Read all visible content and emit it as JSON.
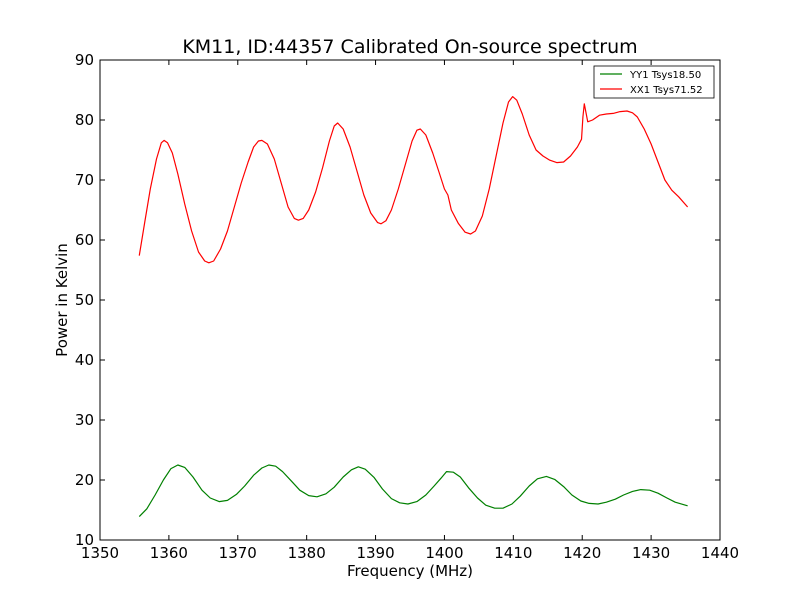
{
  "chart_data": {
    "type": "line",
    "title": "KM11, ID:44357 Calibrated On-source spectrum",
    "xlabel": "Frequency (MHz)",
    "ylabel": "Power in Kelvin",
    "xlim": [
      1350,
      1440
    ],
    "ylim": [
      10,
      90
    ],
    "xticks": [
      1350,
      1360,
      1370,
      1380,
      1390,
      1400,
      1410,
      1420,
      1430,
      1440
    ],
    "yticks": [
      10,
      20,
      30,
      40,
      50,
      60,
      70,
      80,
      90
    ],
    "grid": false,
    "legend_position": "top-right",
    "series": [
      {
        "name": "YY1 Tsys18.50",
        "color": "#008000",
        "points": [
          [
            1355.7,
            13.9
          ],
          [
            1356.8,
            15.2
          ],
          [
            1358.0,
            17.5
          ],
          [
            1359.2,
            20.0
          ],
          [
            1360.3,
            21.9
          ],
          [
            1361.3,
            22.5
          ],
          [
            1362.3,
            22.1
          ],
          [
            1363.5,
            20.5
          ],
          [
            1364.8,
            18.3
          ],
          [
            1366.0,
            17.0
          ],
          [
            1367.3,
            16.4
          ],
          [
            1368.5,
            16.6
          ],
          [
            1369.8,
            17.6
          ],
          [
            1371.0,
            19.0
          ],
          [
            1372.3,
            20.8
          ],
          [
            1373.5,
            22.0
          ],
          [
            1374.5,
            22.5
          ],
          [
            1375.5,
            22.3
          ],
          [
            1376.5,
            21.4
          ],
          [
            1377.8,
            19.8
          ],
          [
            1379.0,
            18.3
          ],
          [
            1380.3,
            17.4
          ],
          [
            1381.5,
            17.2
          ],
          [
            1382.8,
            17.7
          ],
          [
            1384.0,
            18.8
          ],
          [
            1385.3,
            20.5
          ],
          [
            1386.5,
            21.7
          ],
          [
            1387.5,
            22.2
          ],
          [
            1388.5,
            21.8
          ],
          [
            1389.8,
            20.4
          ],
          [
            1391.0,
            18.5
          ],
          [
            1392.3,
            16.9
          ],
          [
            1393.5,
            16.2
          ],
          [
            1394.7,
            16.0
          ],
          [
            1396.0,
            16.4
          ],
          [
            1397.3,
            17.5
          ],
          [
            1398.5,
            19.0
          ],
          [
            1399.5,
            20.3
          ],
          [
            1400.3,
            21.4
          ],
          [
            1401.3,
            21.3
          ],
          [
            1402.3,
            20.5
          ],
          [
            1403.5,
            18.7
          ],
          [
            1404.8,
            17.0
          ],
          [
            1406.0,
            15.8
          ],
          [
            1407.3,
            15.3
          ],
          [
            1408.5,
            15.3
          ],
          [
            1409.8,
            16.0
          ],
          [
            1411.0,
            17.3
          ],
          [
            1412.3,
            19.0
          ],
          [
            1413.5,
            20.2
          ],
          [
            1414.8,
            20.6
          ],
          [
            1416.0,
            20.1
          ],
          [
            1417.3,
            18.9
          ],
          [
            1418.5,
            17.5
          ],
          [
            1419.8,
            16.5
          ],
          [
            1421.0,
            16.1
          ],
          [
            1422.3,
            16.0
          ],
          [
            1423.5,
            16.3
          ],
          [
            1424.8,
            16.8
          ],
          [
            1426.0,
            17.5
          ],
          [
            1427.3,
            18.1
          ],
          [
            1428.5,
            18.4
          ],
          [
            1429.8,
            18.3
          ],
          [
            1431.0,
            17.8
          ],
          [
            1432.3,
            17.0
          ],
          [
            1433.5,
            16.3
          ],
          [
            1435.3,
            15.7
          ]
        ]
      },
      {
        "name": "XX1 Tsys71.52",
        "color": "#ff0000",
        "points": [
          [
            1355.7,
            57.4
          ],
          [
            1356.5,
            63.0
          ],
          [
            1357.3,
            68.5
          ],
          [
            1358.2,
            73.5
          ],
          [
            1358.9,
            76.2
          ],
          [
            1359.3,
            76.6
          ],
          [
            1359.8,
            76.2
          ],
          [
            1360.5,
            74.5
          ],
          [
            1361.3,
            71.0
          ],
          [
            1362.3,
            66.0
          ],
          [
            1363.3,
            61.5
          ],
          [
            1364.3,
            58.0
          ],
          [
            1365.2,
            56.5
          ],
          [
            1365.8,
            56.2
          ],
          [
            1366.5,
            56.5
          ],
          [
            1367.5,
            58.5
          ],
          [
            1368.5,
            61.5
          ],
          [
            1369.5,
            65.5
          ],
          [
            1370.5,
            69.5
          ],
          [
            1371.5,
            73.0
          ],
          [
            1372.3,
            75.5
          ],
          [
            1373.0,
            76.5
          ],
          [
            1373.5,
            76.6
          ],
          [
            1374.3,
            76.0
          ],
          [
            1375.3,
            73.5
          ],
          [
            1376.3,
            69.5
          ],
          [
            1377.3,
            65.5
          ],
          [
            1378.2,
            63.6
          ],
          [
            1378.8,
            63.3
          ],
          [
            1379.5,
            63.6
          ],
          [
            1380.3,
            65.0
          ],
          [
            1381.3,
            68.0
          ],
          [
            1382.3,
            72.0
          ],
          [
            1383.3,
            76.5
          ],
          [
            1384.0,
            79.0
          ],
          [
            1384.5,
            79.5
          ],
          [
            1385.3,
            78.5
          ],
          [
            1386.3,
            75.5
          ],
          [
            1387.3,
            71.5
          ],
          [
            1388.3,
            67.5
          ],
          [
            1389.3,
            64.5
          ],
          [
            1390.3,
            62.9
          ],
          [
            1390.8,
            62.7
          ],
          [
            1391.5,
            63.2
          ],
          [
            1392.3,
            65.0
          ],
          [
            1393.3,
            68.5
          ],
          [
            1394.3,
            72.5
          ],
          [
            1395.3,
            76.5
          ],
          [
            1396.0,
            78.3
          ],
          [
            1396.5,
            78.5
          ],
          [
            1397.3,
            77.5
          ],
          [
            1398.3,
            74.5
          ],
          [
            1399.3,
            71.0
          ],
          [
            1400.0,
            68.5
          ],
          [
            1400.5,
            67.5
          ],
          [
            1401.0,
            65.0
          ],
          [
            1402.0,
            62.8
          ],
          [
            1403.0,
            61.3
          ],
          [
            1403.8,
            61.0
          ],
          [
            1404.5,
            61.5
          ],
          [
            1405.5,
            64.0
          ],
          [
            1406.5,
            68.5
          ],
          [
            1407.5,
            74.0
          ],
          [
            1408.5,
            79.5
          ],
          [
            1409.3,
            83.0
          ],
          [
            1409.9,
            83.9
          ],
          [
            1410.5,
            83.3
          ],
          [
            1411.3,
            81.0
          ],
          [
            1412.3,
            77.5
          ],
          [
            1413.3,
            75.0
          ],
          [
            1414.3,
            74.0
          ],
          [
            1415.3,
            73.3
          ],
          [
            1416.3,
            72.9
          ],
          [
            1417.3,
            73.0
          ],
          [
            1418.3,
            74.0
          ],
          [
            1419.3,
            75.5
          ],
          [
            1419.9,
            76.8
          ],
          [
            1420.1,
            80.5
          ],
          [
            1420.3,
            82.7
          ],
          [
            1420.8,
            79.7
          ],
          [
            1421.5,
            80.0
          ],
          [
            1422.5,
            80.8
          ],
          [
            1423.5,
            81.0
          ],
          [
            1424.5,
            81.1
          ],
          [
            1425.5,
            81.4
          ],
          [
            1426.5,
            81.5
          ],
          [
            1427.3,
            81.2
          ],
          [
            1428.0,
            80.5
          ],
          [
            1429.0,
            78.5
          ],
          [
            1430.0,
            76.0
          ],
          [
            1431.0,
            73.0
          ],
          [
            1432.0,
            70.0
          ],
          [
            1433.0,
            68.3
          ],
          [
            1434.0,
            67.2
          ],
          [
            1435.3,
            65.5
          ]
        ]
      }
    ]
  }
}
